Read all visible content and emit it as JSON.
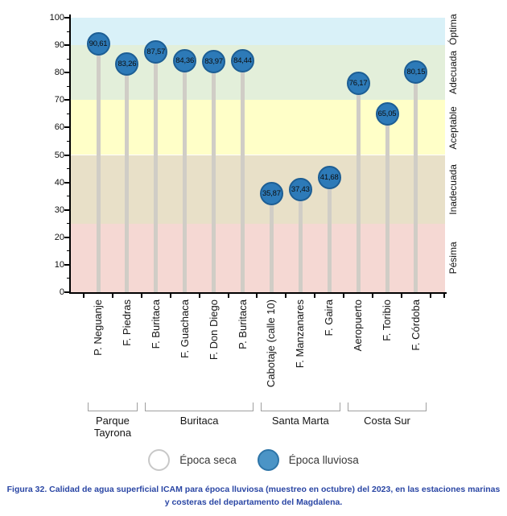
{
  "figure": {
    "caption": "Figura 32. Calidad de agua superficial ICAM para época lluviosa (muestreo en octubre) del 2023, en las estaciones marinas y costeras del departamento del Magdalena.",
    "caption_color": "#2a46a4"
  },
  "chart_data": {
    "type": "lollipop",
    "title": "",
    "ylim": [
      0,
      100
    ],
    "yticks": [
      0,
      10,
      20,
      30,
      40,
      50,
      60,
      70,
      80,
      90,
      100
    ],
    "ytick_minor_step": 5,
    "grid": false,
    "legend_position": "bottom",
    "categories": [
      "P. Neguanje",
      "F. Piedras",
      "F. Buritaca",
      "F. Guachaca",
      "F. Don Diego",
      "P. Buritaca",
      "Cabotaje (calle 10)",
      "F. Manzanares",
      "F. Gaira",
      "Aeropuerto",
      "F. Toribio",
      "F. Córdoba"
    ],
    "series": [
      {
        "name": "Época lluviosa",
        "values": [
          90.61,
          83.26,
          87.57,
          84.36,
          83.97,
          84.44,
          35.87,
          37.43,
          41.68,
          76.17,
          65.05,
          80.15
        ],
        "value_labels": [
          "90,61",
          "83,26",
          "87,57",
          "84,36",
          "83,97",
          "84,44",
          "35,87",
          "37,43",
          "41,68",
          "76,17",
          "65,05",
          "80,15"
        ]
      }
    ],
    "quality_bands": [
      {
        "label": "Óptima",
        "from": 90,
        "to": 100,
        "color": "#d9f1f8"
      },
      {
        "label": "Adecuada",
        "from": 70,
        "to": 90,
        "color": "#e3efda"
      },
      {
        "label": "Aceptable",
        "from": 50,
        "to": 70,
        "color": "#ffffc8"
      },
      {
        "label": "Inadecuada",
        "from": 25,
        "to": 50,
        "color": "#e8e0c8"
      },
      {
        "label": "Pésima",
        "from": 0,
        "to": 25,
        "color": "#f5d8d3"
      }
    ],
    "station_groups": [
      {
        "label": "Parque Tayrona",
        "from_index": 0,
        "to_index": 1
      },
      {
        "label": "Buritaca",
        "from_index": 2,
        "to_index": 5
      },
      {
        "label": "Santa Marta",
        "from_index": 6,
        "to_index": 8
      },
      {
        "label": "Costa Sur",
        "from_index": 9,
        "to_index": 11
      }
    ],
    "legend": [
      {
        "label": "Época seca",
        "fill": "#ffffff",
        "border": "#c8c8c8"
      },
      {
        "label": "Época lluviosa",
        "fill": "#4b94c6",
        "border": "#2e75a8"
      }
    ],
    "marker_colors": {
      "fill": "#2d7ab8",
      "border": "#1d5e94",
      "stem": "#d0cdc6"
    }
  }
}
